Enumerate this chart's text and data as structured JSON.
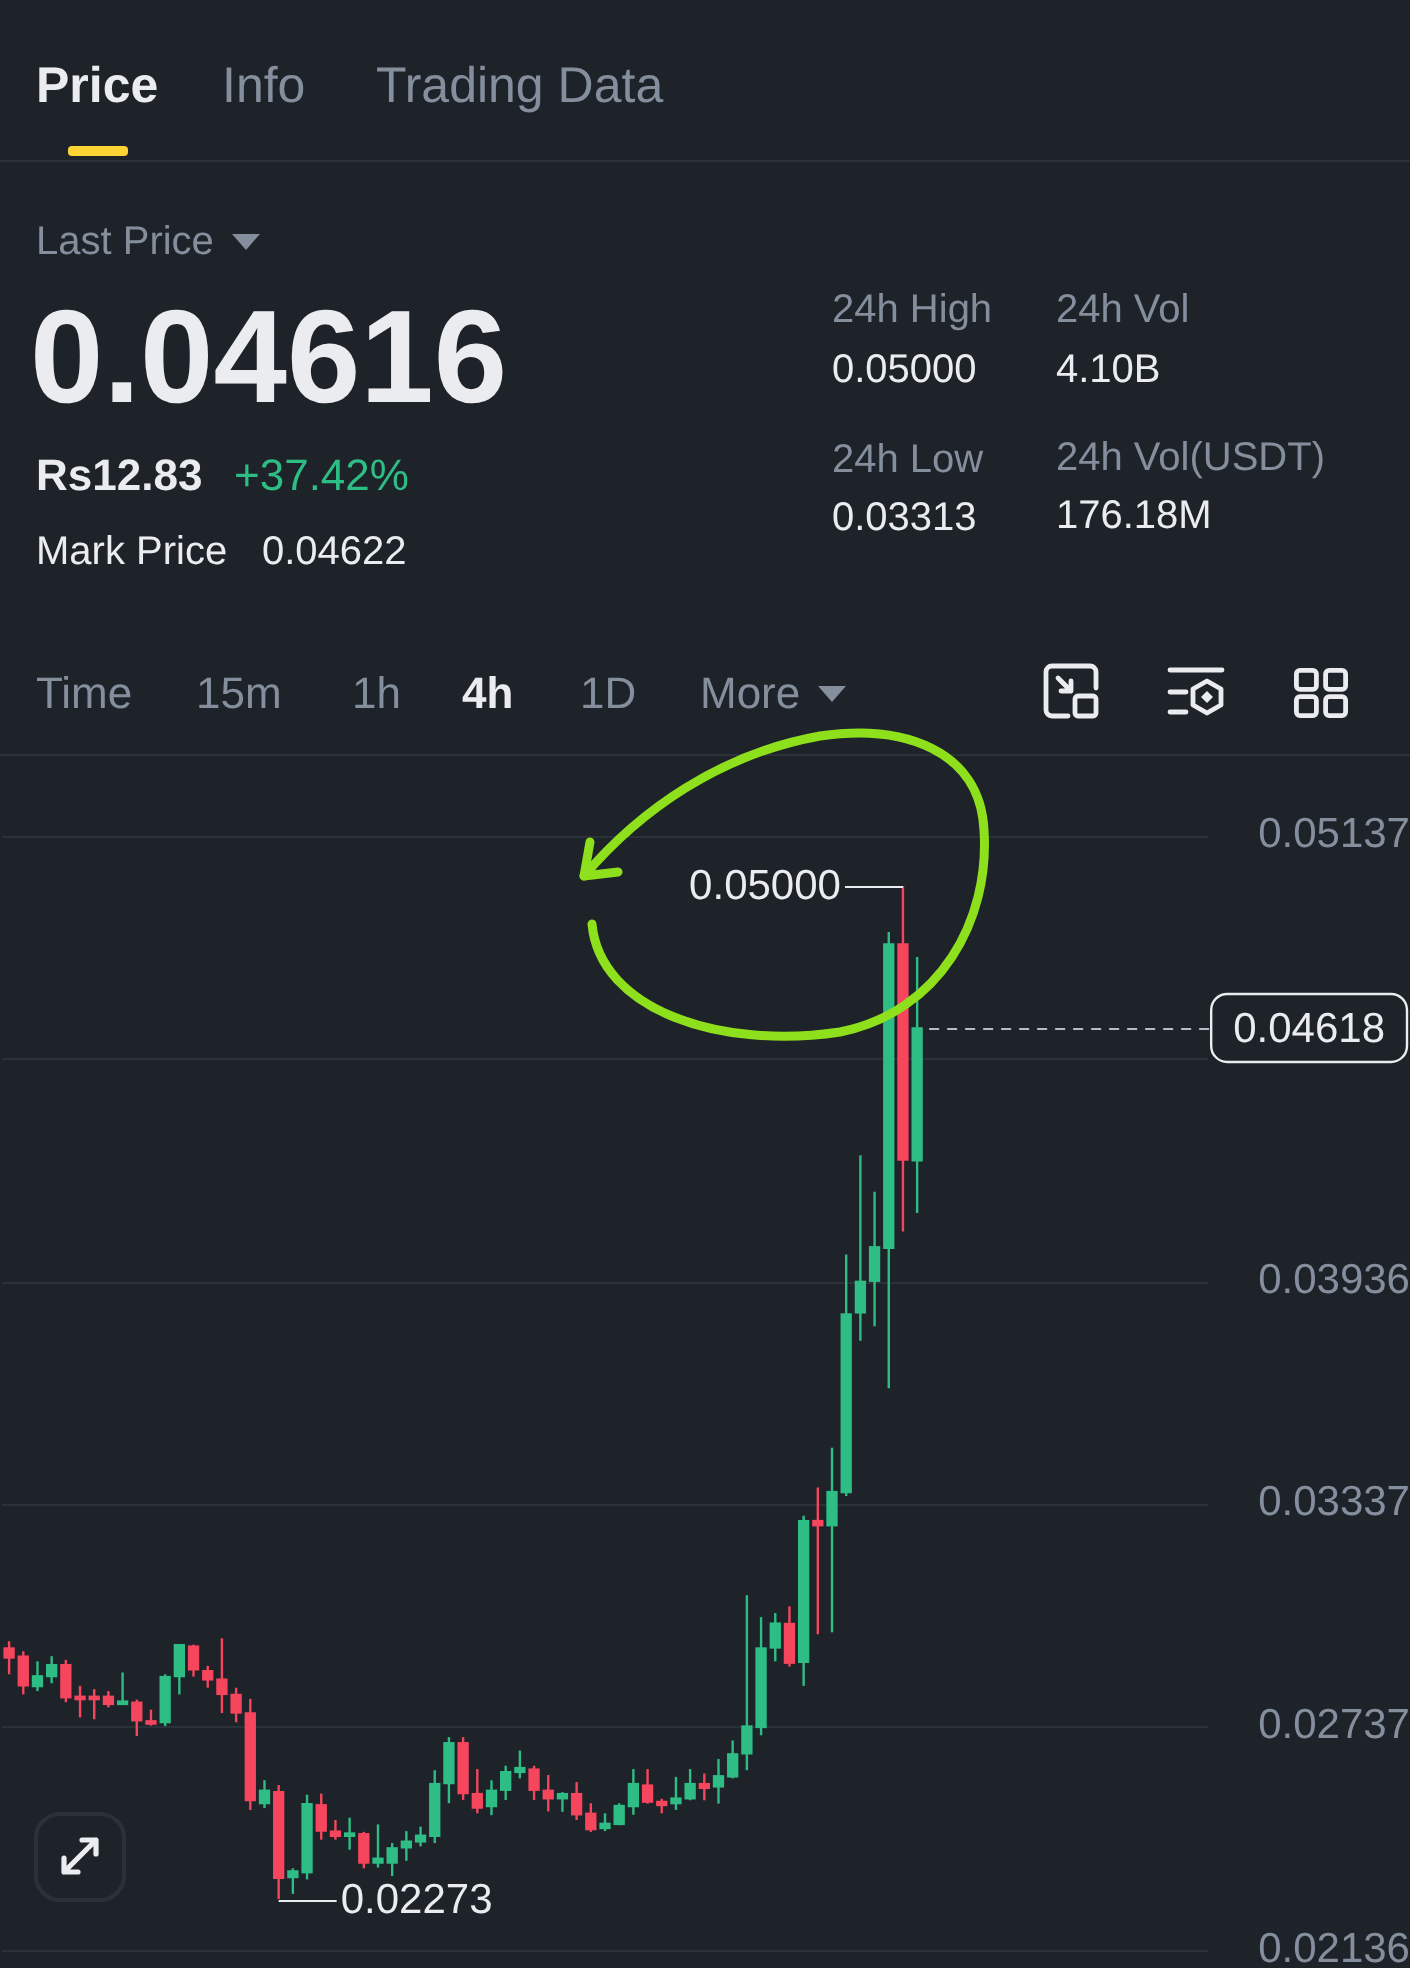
{
  "chart_data": {
    "type": "candlestick",
    "categories": [
      null,
      null,
      null,
      null,
      null,
      null,
      null,
      null,
      null,
      null,
      null,
      null,
      null,
      null,
      null,
      null,
      null,
      null,
      null,
      null,
      null,
      null,
      null,
      null,
      null,
      null,
      null,
      null,
      null,
      null,
      null,
      null,
      null,
      null,
      null,
      null,
      null,
      null,
      null,
      null,
      null,
      null,
      null,
      null,
      null,
      null,
      null,
      null,
      null,
      null,
      null,
      null,
      null,
      null,
      null,
      null,
      null,
      null,
      null,
      null,
      null,
      null,
      null,
      null,
      null,
      null,
      null,
      null,
      null,
      null,
      null,
      null,
      null,
      null,
      null,
      null,
      null,
      null,
      null,
      null,
      null,
      null,
      null,
      null,
      null
    ],
    "ohlc": [
      [
        0.02949,
        0.02967,
        0.02878,
        0.02922
      ],
      [
        0.02927,
        0.0294,
        0.02824,
        0.02847
      ],
      [
        0.02845,
        0.02913,
        0.02833,
        0.02874
      ],
      [
        0.02872,
        0.02927,
        0.02854,
        0.02904
      ],
      [
        0.02904,
        0.02917,
        0.02803,
        0.02815
      ],
      [
        0.02819,
        0.02847,
        0.02762,
        0.0281
      ],
      [
        0.02819,
        0.02838,
        0.02757,
        0.0281
      ],
      [
        0.02819,
        0.02833,
        0.02789,
        0.02797
      ],
      [
        0.02797,
        0.02883,
        0.02797,
        0.02806
      ],
      [
        0.02803,
        0.0281,
        0.02712,
        0.02753
      ],
      [
        0.02753,
        0.02783,
        0.0274,
        0.02744
      ],
      [
        0.02748,
        0.02878,
        0.02739,
        0.02872
      ],
      [
        0.02872,
        0.02958,
        0.02824,
        0.02958
      ],
      [
        0.02954,
        0.02958,
        0.02872,
        0.0289
      ],
      [
        0.02888,
        0.02901,
        0.02842,
        0.02863
      ],
      [
        0.02865,
        0.02975,
        0.02774,
        0.02824
      ],
      [
        0.02824,
        0.02842,
        0.02749,
        0.02774
      ],
      [
        0.02774,
        0.02812,
        0.02513,
        0.02538
      ],
      [
        0.0253,
        0.02593,
        0.02518,
        0.02566
      ],
      [
        0.02562,
        0.0258,
        0.02273,
        0.02329
      ],
      [
        0.02331,
        0.02356,
        0.02287,
        0.02349
      ],
      [
        0.02344,
        0.02554,
        0.02326,
        0.0253
      ],
      [
        0.02527,
        0.02557,
        0.02433,
        0.02456
      ],
      [
        0.02456,
        0.02486,
        0.02433,
        0.02442
      ],
      [
        0.02442,
        0.02492,
        0.02406,
        0.02451
      ],
      [
        0.02449,
        0.02454,
        0.02356,
        0.0237
      ],
      [
        0.0237,
        0.02474,
        0.02358,
        0.02383
      ],
      [
        0.0237,
        0.02424,
        0.02335,
        0.02411
      ],
      [
        0.02411,
        0.02456,
        0.02376,
        0.02429
      ],
      [
        0.02427,
        0.02468,
        0.02415,
        0.02445
      ],
      [
        0.02442,
        0.0262,
        0.02424,
        0.02584
      ],
      [
        0.02584,
        0.02709,
        0.02531,
        0.02694
      ],
      [
        0.02694,
        0.02709,
        0.0254,
        0.02557
      ],
      [
        0.02557,
        0.02623,
        0.02504,
        0.02518
      ],
      [
        0.02522,
        0.02593,
        0.02499,
        0.02566
      ],
      [
        0.02566,
        0.02632,
        0.0254,
        0.02616
      ],
      [
        0.02614,
        0.02673,
        0.02598,
        0.02627
      ],
      [
        0.02623,
        0.02632,
        0.0254,
        0.02566
      ],
      [
        0.02566,
        0.02607,
        0.02509,
        0.02543
      ],
      [
        0.02543,
        0.02561,
        0.02508,
        0.02557
      ],
      [
        0.02557,
        0.02588,
        0.02486,
        0.025
      ],
      [
        0.02504,
        0.02531,
        0.02454,
        0.0246
      ],
      [
        0.02463,
        0.02504,
        0.02456,
        0.02477
      ],
      [
        0.02474,
        0.02531,
        0.02472,
        0.02525
      ],
      [
        0.02522,
        0.02623,
        0.025,
        0.02584
      ],
      [
        0.0258,
        0.02623,
        0.0253,
        0.02534
      ],
      [
        0.02536,
        0.02543,
        0.02504,
        0.02525
      ],
      [
        0.0253,
        0.02602,
        0.02513,
        0.02545
      ],
      [
        0.02543,
        0.02623,
        0.02539,
        0.02584
      ],
      [
        0.02584,
        0.02611,
        0.02539,
        0.02571
      ],
      [
        0.02575,
        0.0265,
        0.0253,
        0.02605
      ],
      [
        0.02602,
        0.027,
        0.02598,
        0.02664
      ],
      [
        0.02664,
        0.03091,
        0.0262,
        0.02739
      ],
      [
        0.02735,
        0.03032,
        0.02714,
        0.02949
      ],
      [
        0.02949,
        0.03043,
        0.02913,
        0.03016
      ],
      [
        0.03015,
        0.03061,
        0.02899,
        0.02908
      ],
      [
        0.0291,
        0.03305,
        0.02847,
        0.03292
      ],
      [
        0.03292,
        0.03381,
        0.02986,
        0.03278
      ],
      [
        0.03278,
        0.03488,
        0.02991,
        0.0337
      ],
      [
        0.03367,
        0.04008,
        0.03358,
        0.03848
      ],
      [
        0.03851,
        0.04275,
        0.03776,
        0.03936
      ],
      [
        0.03936,
        0.04177,
        0.03815,
        0.04029
      ],
      [
        0.04025,
        0.04876,
        0.03648,
        0.04844
      ],
      [
        0.04844,
        0.05,
        0.0407,
        0.04262
      ],
      [
        0.0426,
        0.04809,
        0.0412,
        0.04618
      ],
      null,
      null,
      null,
      null,
      null,
      null,
      null,
      null,
      null,
      null,
      null,
      null,
      null,
      null,
      null,
      null,
      null,
      null,
      null,
      null
    ],
    "colors": [
      "#f6465d",
      "#f6465d",
      "#2ebd85",
      "#2ebd85",
      "#f6465d",
      "#f6465d",
      "#f6465d",
      "#f6465d",
      "#2ebd85",
      "#f6465d",
      "#f6465d",
      "#2ebd85",
      "#2ebd85",
      "#f6465d",
      "#f6465d",
      "#f6465d",
      "#f6465d",
      "#f6465d",
      "#2ebd85",
      "#f6465d",
      "#2ebd85",
      "#2ebd85",
      "#f6465d",
      "#f6465d",
      "#2ebd85",
      "#f6465d",
      "#2ebd85",
      "#2ebd85",
      "#2ebd85",
      "#2ebd85",
      "#2ebd85",
      "#2ebd85",
      "#f6465d",
      "#f6465d",
      "#2ebd85",
      "#2ebd85",
      "#2ebd85",
      "#f6465d",
      "#f6465d",
      "#2ebd85",
      "#f6465d",
      "#f6465d",
      "#2ebd85",
      "#2ebd85",
      "#2ebd85",
      "#f6465d",
      "#f6465d",
      "#2ebd85",
      "#2ebd85",
      "#f6465d",
      "#2ebd85",
      "#2ebd85",
      "#2ebd85",
      "#2ebd85",
      "#2ebd85",
      "#f6465d",
      "#2ebd85",
      "#f6465d",
      "#2ebd85",
      "#2ebd85",
      "#2ebd85",
      "#2ebd85",
      "#2ebd85",
      "#f6465d",
      "#2ebd85",
      null,
      null,
      null,
      null,
      null,
      null,
      null,
      null,
      null,
      null,
      null,
      null,
      null,
      null,
      null,
      null,
      null,
      null,
      null,
      null
    ],
    "ylim": [
      0.02136,
      0.0535
    ],
    "yticks": [
      0.02136,
      0.02737,
      0.03337,
      0.03936,
      {
        "value": 0.04536,
        "label": null
      },
      0.05137
    ],
    "grid": "y",
    "tick_labels": "y",
    "ref_lines": [
      {
        "axis": "y",
        "value": 0.04618,
        "label": "0.04618",
        "line_style": "dashed",
        "color": "#b7bdc6"
      }
    ],
    "annotations": [
      "Price",
      "Info",
      "Trading Data",
      "Last Price",
      "0.04616",
      "Rs12.83",
      "+37.42%",
      "Mark Price",
      "0.04622",
      "24h High",
      "0.05000",
      "24h Low",
      "0.03313",
      "24h Vol",
      "4.10B",
      "24h Vol(USDT)",
      "176.18M",
      "Time",
      "15m",
      "1h",
      "4h",
      "1D",
      "More",
      "0.05000",
      "0.02273"
    ]
  }
}
